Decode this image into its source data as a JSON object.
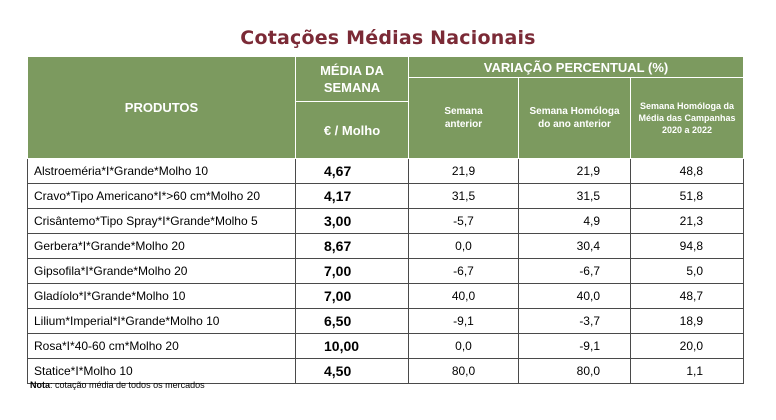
{
  "title": "Cotações Médias Nacionais",
  "headers": {
    "produtos": "PRODUTOS",
    "media_line1": "MÉDIA DA",
    "media_line2": "SEMANA",
    "unit": "€ / Molho",
    "variacao": "VARIAÇÃO PERCENTUAL (%)",
    "sub1_line1": "Semana",
    "sub1_line2": "anterior",
    "sub2_line1": "Semana Homóloga",
    "sub2_line2": "do ano anterior",
    "sub3_line1": "Semana Homóloga da",
    "sub3_line2": "Média das Campanhas",
    "sub3_line3": "2020 a 2022"
  },
  "rows": [
    {
      "produto": "Alstroeméria*I*Grande*Molho 10",
      "media": "4,67",
      "anterior": "21,9",
      "homologa": "21,9",
      "campanhas": "48,8"
    },
    {
      "produto": "Cravo*Tipo Americano*I*>60 cm*Molho 20",
      "media": "4,17",
      "anterior": "31,5",
      "homologa": "31,5",
      "campanhas": "51,8"
    },
    {
      "produto": "Crisântemo*Tipo Spray*I*Grande*Molho 5",
      "media": "3,00",
      "anterior": "-5,7",
      "homologa": "4,9",
      "campanhas": "21,3"
    },
    {
      "produto": "Gerbera*I*Grande*Molho 20",
      "media": "8,67",
      "anterior": "0,0",
      "homologa": "30,4",
      "campanhas": "94,8"
    },
    {
      "produto": "Gipsofila*I*Grande*Molho 20",
      "media": "7,00",
      "anterior": "-6,7",
      "homologa": "-6,7",
      "campanhas": "5,0"
    },
    {
      "produto": "Gladíolo*I*Grande*Molho 10",
      "media": "7,00",
      "anterior": "40,0",
      "homologa": "40,0",
      "campanhas": "48,7"
    },
    {
      "produto": "Lilium*Imperial*I*Grande*Molho 10",
      "media": "6,50",
      "anterior": "-9,1",
      "homologa": "-3,7",
      "campanhas": "18,9"
    },
    {
      "produto": "Rosa*I*40-60 cm*Molho 20",
      "media": "10,00",
      "anterior": "0,0",
      "homologa": "-9,1",
      "campanhas": "20,0"
    },
    {
      "produto": "Statice*I*Molho 10",
      "media": "4,50",
      "anterior": "80,0",
      "homologa": "80,0",
      "campanhas": "1,1"
    }
  ],
  "note": {
    "label": "Nota",
    "text": ": cotação média de todos os mercados"
  },
  "colors": {
    "title": "#7b2a36",
    "header_bg": "#7c9a5f",
    "header_text": "#ffffff"
  }
}
